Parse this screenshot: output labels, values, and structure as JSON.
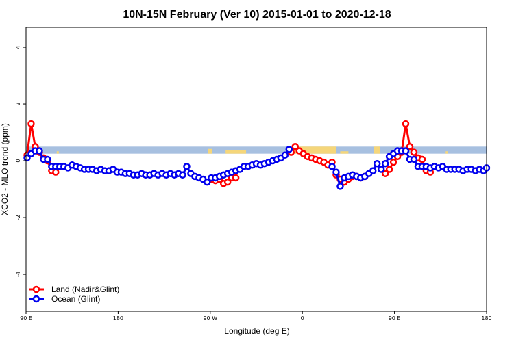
{
  "chart_data": {
    "type": "line",
    "title": "10N-15N February (Ver 10)   2015-01-01 to 2020-12-18",
    "xlabel": "Longitude (deg E)",
    "ylabel": "XCO2 - MLO trend (ppm)",
    "xlim": [
      90,
      540
    ],
    "ylim": [
      -5.3,
      4.7
    ],
    "x_ticks": [
      {
        "value": 90,
        "label": "90 E"
      },
      {
        "value": 180,
        "label": "180"
      },
      {
        "value": 270,
        "label": "90 W"
      },
      {
        "value": 360,
        "label": "0"
      },
      {
        "value": 450,
        "label": "90 E"
      },
      {
        "value": 540,
        "label": "180"
      }
    ],
    "y_ticks": [
      {
        "value": -4,
        "label": "-4"
      },
      {
        "value": -2,
        "label": "-2"
      },
      {
        "value": 0,
        "label": "0"
      },
      {
        "value": 2,
        "label": "2"
      },
      {
        "value": 4,
        "label": "4"
      }
    ],
    "band": {
      "y_range": [
        0.25,
        0.5
      ],
      "color": "#a7c0e0",
      "land_color": "#f5d67a"
    },
    "legend_position": "bottom-left",
    "series": [
      {
        "name": "Land (Nadir&Glint)",
        "color": "#ff0000",
        "segments": [
          {
            "x": [
              91,
              95,
              99,
              103,
              107,
              111,
              115,
              119,
              123
            ],
            "y": [
              0.2,
              1.3,
              0.5,
              0.3,
              0.1,
              0.0,
              -0.35,
              -0.4,
              -0.2
            ]
          },
          {
            "x": [
              271,
              275,
              279,
              283,
              287,
              291,
              295
            ],
            "y": [
              -0.65,
              -0.7,
              -0.65,
              -0.8,
              -0.75,
              -0.6,
              -0.6
            ]
          },
          {
            "x": [
              349,
              353,
              357,
              361,
              365,
              369,
              373,
              377,
              381,
              385,
              389,
              393,
              397,
              401,
              405,
              409,
              413,
              417,
              421
            ],
            "y": [
              0.3,
              0.5,
              0.35,
              0.25,
              0.15,
              0.1,
              0.05,
              0.0,
              -0.05,
              -0.15,
              -0.05,
              -0.5,
              -0.65,
              -0.75,
              -0.65,
              -0.55,
              -0.55,
              -0.6,
              -0.55
            ]
          },
          {
            "x": [
              441,
              445,
              449,
              453,
              457,
              461,
              465,
              469,
              473,
              477
            ],
            "y": [
              -0.45,
              -0.3,
              -0.05,
              0.15,
              0.3,
              1.3,
              0.5,
              0.3,
              0.1,
              0.05
            ]
          },
          {
            "x": [
              477,
              481,
              485
            ],
            "y": [
              0.05,
              -0.35,
              -0.4
            ]
          }
        ]
      },
      {
        "name": "Ocean (Glint)",
        "color": "#0000ee",
        "segments": [
          {
            "x": [
              91,
              95,
              99,
              103,
              107,
              111,
              115,
              119,
              123,
              127,
              131,
              135,
              139,
              143,
              147,
              151,
              155,
              159,
              163,
              167,
              171,
              175,
              179,
              183,
              187,
              191,
              195,
              199,
              203,
              207,
              211,
              215,
              219,
              223,
              227,
              231,
              235,
              239,
              243,
              247,
              251,
              255,
              259,
              263,
              267,
              271,
              275,
              279,
              283,
              287,
              291,
              295,
              299,
              303,
              307,
              311,
              315,
              319,
              323,
              327,
              331,
              335,
              339,
              343,
              347
            ],
            "y": [
              0.1,
              0.25,
              0.35,
              0.35,
              0.05,
              0.05,
              -0.2,
              -0.2,
              -0.2,
              -0.2,
              -0.25,
              -0.15,
              -0.2,
              -0.25,
              -0.3,
              -0.3,
              -0.3,
              -0.35,
              -0.3,
              -0.35,
              -0.35,
              -0.3,
              -0.4,
              -0.4,
              -0.45,
              -0.45,
              -0.5,
              -0.5,
              -0.45,
              -0.5,
              -0.5,
              -0.45,
              -0.5,
              -0.45,
              -0.5,
              -0.45,
              -0.5,
              -0.45,
              -0.5,
              -0.2,
              -0.45,
              -0.55,
              -0.6,
              -0.65,
              -0.75,
              -0.6,
              -0.6,
              -0.55,
              -0.5,
              -0.45,
              -0.4,
              -0.35,
              -0.3,
              -0.2,
              -0.2,
              -0.15,
              -0.1,
              -0.15,
              -0.1,
              -0.05,
              0.0,
              0.05,
              0.1,
              0.2,
              0.4
            ]
          },
          {
            "x": [
              389,
              393,
              397,
              401,
              405,
              409,
              413,
              417,
              421,
              425,
              429,
              433,
              437,
              441,
              445,
              449,
              453,
              457,
              461,
              465,
              469,
              473,
              477,
              481,
              485,
              489,
              493,
              497,
              501,
              505,
              509,
              513,
              517,
              521,
              525,
              529,
              533,
              537,
              540
            ],
            "y": [
              -0.2,
              -0.4,
              -0.9,
              -0.6,
              -0.55,
              -0.5,
              -0.55,
              -0.6,
              -0.55,
              -0.45,
              -0.35,
              -0.1,
              -0.3,
              -0.1,
              0.15,
              0.25,
              0.35,
              0.35,
              0.35,
              0.05,
              0.05,
              -0.2,
              -0.2,
              -0.2,
              -0.25,
              -0.2,
              -0.25,
              -0.2,
              -0.3,
              -0.3,
              -0.3,
              -0.3,
              -0.35,
              -0.3,
              -0.3,
              -0.35,
              -0.3,
              -0.35,
              -0.25
            ]
          }
        ]
      }
    ],
    "land_features": [
      {
        "x": [
          120,
          122
        ],
        "depth": 0.1
      },
      {
        "x": [
          268,
          272
        ],
        "depth": 0.2
      },
      {
        "x": [
          285,
          305
        ],
        "depth": 0.15
      },
      {
        "x": [
          350,
          393
        ],
        "depth": 0.3
      },
      {
        "x": [
          397,
          405
        ],
        "depth": 0.1
      },
      {
        "x": [
          430,
          436
        ],
        "depth": 0.3
      },
      {
        "x": [
          460,
          463
        ],
        "depth": 0.1
      },
      {
        "x": [
          500,
          502
        ],
        "depth": 0.1
      }
    ]
  }
}
